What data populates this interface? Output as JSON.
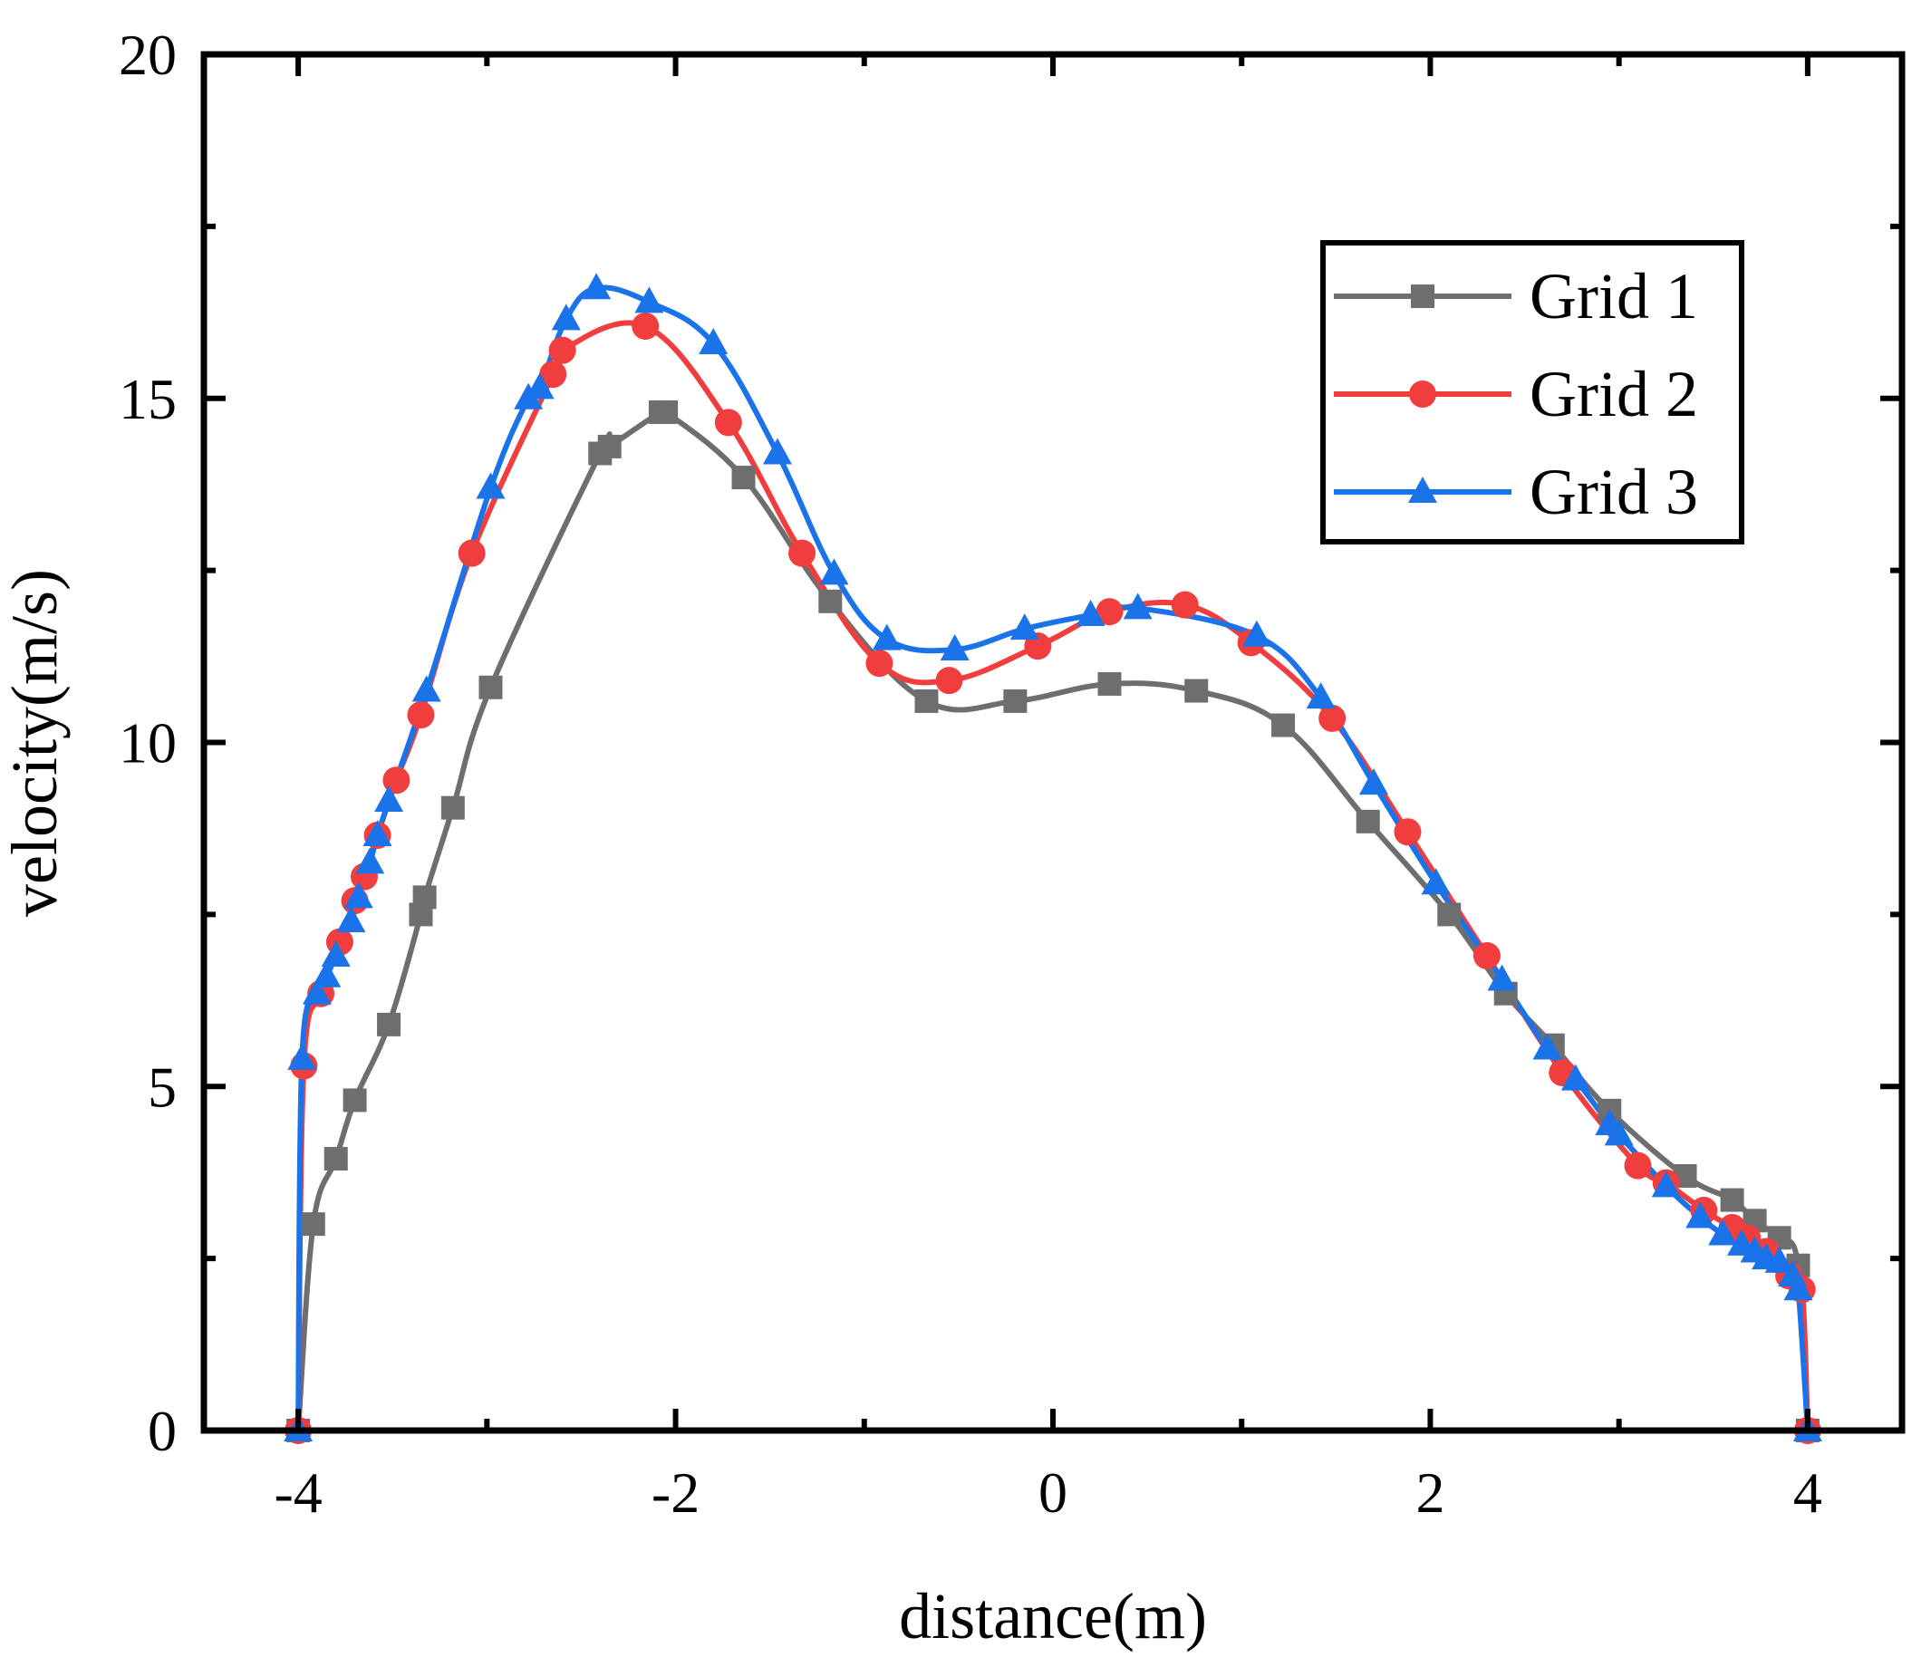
{
  "chart_data": {
    "type": "line",
    "title": "",
    "xlabel": "distance(m)",
    "ylabel": "velocity(m/s)",
    "xlim": [
      -4.5,
      4.5
    ],
    "ylim": [
      0,
      20
    ],
    "xticks": [
      -4,
      -2,
      0,
      2,
      4
    ],
    "xtick_labels": [
      "-4",
      "-2",
      "0",
      "2",
      "4"
    ],
    "yticks": [
      0,
      5,
      10,
      15,
      20
    ],
    "ytick_labels": [
      "0",
      "5",
      "10",
      "15",
      "20"
    ],
    "grid": false,
    "legend_position": "top-right",
    "series": [
      {
        "name": "Grid 1",
        "color": "#6e6e6e",
        "marker": "square",
        "x": [
          -4.0,
          -3.92,
          -3.8,
          -3.7,
          -3.52,
          -3.35,
          -3.33,
          -3.18,
          -2.98,
          -2.4,
          -2.35,
          -2.08,
          -2.05,
          -1.64,
          -1.18,
          -0.67,
          -0.2,
          0.3,
          0.76,
          1.22,
          1.67,
          2.1,
          2.4,
          2.65,
          2.95,
          3.35,
          3.6,
          3.72,
          3.85,
          3.95,
          4.0
        ],
        "y": [
          0.0,
          3.0,
          3.95,
          4.8,
          5.9,
          7.5,
          7.75,
          9.05,
          10.8,
          14.2,
          14.3,
          14.8,
          14.8,
          13.85,
          12.05,
          10.6,
          10.6,
          10.85,
          10.75,
          10.25,
          8.85,
          7.5,
          6.35,
          5.6,
          4.65,
          3.7,
          3.35,
          3.05,
          2.8,
          2.4,
          0.0
        ]
      },
      {
        "name": "Grid 2",
        "color": "#f03e3e",
        "marker": "circle",
        "x": [
          -4.0,
          -3.97,
          -3.88,
          -3.78,
          -3.7,
          -3.65,
          -3.58,
          -3.48,
          -3.35,
          -3.08,
          -2.65,
          -2.6,
          -2.16,
          -1.72,
          -1.33,
          -0.92,
          -0.55,
          -0.08,
          0.3,
          0.7,
          1.05,
          1.48,
          1.88,
          2.3,
          2.7,
          3.1,
          3.25,
          3.45,
          3.6,
          3.68,
          3.78,
          3.9,
          3.97,
          4.0
        ],
        "y": [
          0.0,
          5.3,
          6.35,
          7.1,
          7.7,
          8.05,
          8.65,
          9.45,
          10.4,
          12.75,
          15.35,
          15.7,
          16.05,
          14.65,
          12.75,
          11.15,
          10.9,
          11.4,
          11.9,
          12.0,
          11.45,
          10.35,
          8.7,
          6.9,
          5.2,
          3.85,
          3.6,
          3.2,
          2.95,
          2.8,
          2.6,
          2.25,
          2.05,
          0.0
        ]
      },
      {
        "name": "Grid 3",
        "color": "#1a73e8",
        "marker": "triangle",
        "x": [
          -4.0,
          -3.98,
          -3.9,
          -3.85,
          -3.8,
          -3.72,
          -3.68,
          -3.62,
          -3.58,
          -3.52,
          -3.32,
          -2.98,
          -2.78,
          -2.72,
          -2.58,
          -2.42,
          -2.14,
          -1.8,
          -1.46,
          -1.16,
          -0.88,
          -0.52,
          -0.15,
          0.2,
          0.45,
          1.08,
          1.42,
          1.7,
          2.03,
          2.38,
          2.62,
          2.77,
          2.95,
          3.0,
          3.25,
          3.43,
          3.55,
          3.65,
          3.72,
          3.78,
          3.85,
          3.92,
          3.95,
          4.0
        ],
        "y": [
          0.0,
          5.4,
          6.35,
          6.6,
          6.9,
          7.4,
          7.75,
          8.25,
          8.65,
          9.15,
          10.75,
          13.7,
          15.0,
          15.15,
          16.15,
          16.6,
          16.4,
          15.8,
          14.2,
          12.45,
          11.5,
          11.35,
          11.65,
          11.85,
          11.95,
          11.55,
          10.65,
          9.4,
          7.95,
          6.55,
          5.55,
          5.1,
          4.45,
          4.3,
          3.55,
          3.1,
          2.85,
          2.7,
          2.6,
          2.5,
          2.45,
          2.25,
          2.05,
          0.0
        ]
      }
    ]
  }
}
